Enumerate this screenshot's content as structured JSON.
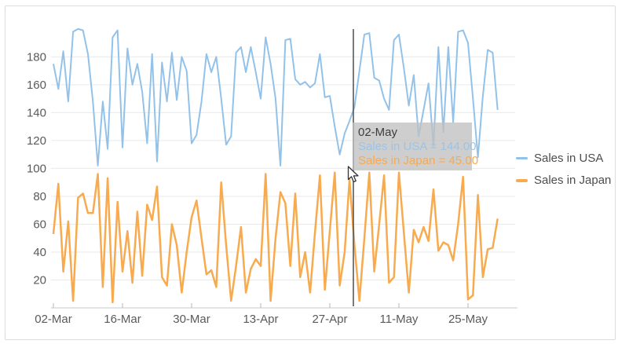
{
  "window": {
    "background": "#ffffff",
    "border_color": "#dcdcdc"
  },
  "chart": {
    "legend": {
      "items": [
        {
          "label": "Sales in USA",
          "color": "#92c2ea"
        },
        {
          "label": "Sales in Japan",
          "color": "#f8aa4e"
        }
      ]
    },
    "tooltip": {
      "title": "02-May",
      "lines": [
        {
          "text": "Sales in USA = 144.00",
          "color": "#9cc3e6"
        },
        {
          "text": "Sales in Japan = 45.00",
          "color": "#f9a94f"
        }
      ],
      "background": "rgba(192,192,192,0.78)"
    },
    "crosshair": {
      "color": "#4f4f4f",
      "x_label": "02-May"
    }
  },
  "chart_data": {
    "type": "line",
    "title": "",
    "xlabel": "",
    "ylabel": "",
    "x_unit": "day",
    "x_range": [
      "02-Mar",
      "31-May"
    ],
    "x_tick_labels": [
      "02-Mar",
      "16-Mar",
      "30-Mar",
      "13-Apr",
      "27-Apr",
      "11-May",
      "25-May"
    ],
    "y_ticks": [
      20,
      40,
      60,
      80,
      100,
      120,
      140,
      160,
      180
    ],
    "ylim": [
      0,
      205
    ],
    "grid": "horizontal",
    "legend_position": "right",
    "crosshair_point": {
      "x": "02-May",
      "Sales in USA": 144.0,
      "Sales in Japan": 45.0
    },
    "series": [
      {
        "name": "Sales in USA",
        "color": "#92c2ea",
        "stroke_width": 2,
        "values": [
          175,
          157,
          184,
          148,
          198,
          200,
          199,
          182,
          148,
          102,
          148,
          114,
          194,
          199,
          115,
          186,
          160,
          175,
          155,
          118,
          182,
          105,
          176,
          148,
          183,
          149,
          180,
          170,
          118,
          124,
          148,
          182,
          169,
          180,
          150,
          117,
          123,
          183,
          187,
          169,
          187,
          169,
          150,
          194,
          175,
          150,
          102,
          192,
          193,
          164,
          160,
          162,
          158,
          161,
          182,
          151,
          152,
          130,
          110,
          125,
          134,
          144,
          170,
          196,
          197,
          165,
          163,
          150,
          142,
          192,
          196,
          172,
          145,
          167,
          123,
          142,
          161,
          116,
          187,
          126,
          187,
          133,
          198,
          199,
          190,
          150,
          108,
          152,
          185,
          183,
          142
        ]
      },
      {
        "name": "Sales in Japan",
        "color": "#f8aa4e",
        "stroke_width": 2.5,
        "values": [
          53,
          89,
          26,
          62,
          5,
          79,
          82,
          68,
          68,
          96,
          15,
          93,
          4,
          76,
          26,
          55,
          18,
          69,
          23,
          74,
          63,
          87,
          22,
          16,
          60,
          45,
          11,
          40,
          65,
          77,
          50,
          24,
          27,
          15,
          90,
          45,
          5,
          30,
          58,
          11,
          28,
          35,
          30,
          96,
          5,
          50,
          83,
          75,
          30,
          82,
          22,
          40,
          11,
          54,
          95,
          13,
          55,
          97,
          16,
          40,
          92,
          45,
          5,
          50,
          97,
          26,
          60,
          95,
          18,
          22,
          97,
          54,
          11,
          56,
          47,
          58,
          48,
          85,
          41,
          47,
          45,
          34,
          60,
          94,
          6,
          9,
          81,
          22,
          42,
          43,
          64
        ]
      }
    ]
  }
}
